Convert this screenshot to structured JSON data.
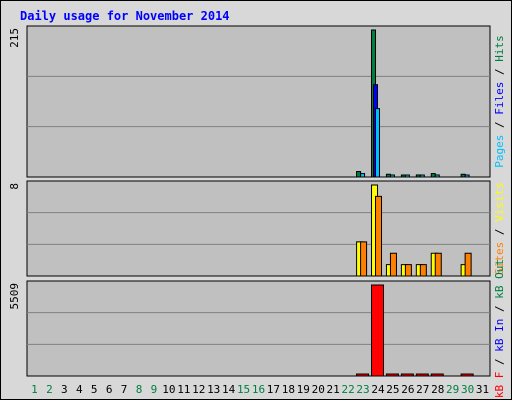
{
  "chart_data": {
    "type": "bar",
    "title": "Daily usage for November 2014",
    "categories": [
      "1",
      "2",
      "3",
      "4",
      "5",
      "6",
      "7",
      "8",
      "9",
      "10",
      "11",
      "12",
      "13",
      "14",
      "15",
      "16",
      "17",
      "18",
      "19",
      "20",
      "21",
      "22",
      "23",
      "24",
      "25",
      "26",
      "27",
      "28",
      "29",
      "30",
      "31"
    ],
    "weekend_days": [
      "1",
      "2",
      "8",
      "9",
      "15",
      "16",
      "22",
      "23",
      "29",
      "30"
    ],
    "panels": [
      {
        "id": "hits",
        "max_label": "215",
        "ylim": [
          0,
          215
        ],
        "series": [
          {
            "name": "Hits",
            "color": "#008040",
            "values": [
              0,
              0,
              0,
              0,
              0,
              0,
              0,
              0,
              0,
              0,
              0,
              0,
              0,
              0,
              0,
              0,
              0,
              0,
              0,
              0,
              0,
              0,
              8,
              215,
              4,
              2,
              3,
              5,
              0,
              4,
              0
            ]
          },
          {
            "name": "Files",
            "color": "#0000ff",
            "values": [
              0,
              0,
              0,
              0,
              0,
              0,
              0,
              0,
              0,
              0,
              0,
              0,
              0,
              0,
              0,
              0,
              0,
              0,
              0,
              0,
              0,
              0,
              0,
              135,
              0,
              0,
              0,
              0,
              0,
              0,
              0
            ]
          },
          {
            "name": "Pages",
            "color": "#00c0ff",
            "values": [
              0,
              0,
              0,
              0,
              0,
              0,
              0,
              0,
              0,
              0,
              0,
              0,
              0,
              0,
              0,
              0,
              0,
              0,
              0,
              0,
              0,
              0,
              5,
              100,
              2,
              1,
              2,
              3,
              0,
              2,
              0
            ]
          }
        ]
      },
      {
        "id": "visits",
        "max_label": "8",
        "ylim": [
          0,
          8
        ],
        "series": [
          {
            "name": "Visits",
            "color": "#ffff00",
            "values": [
              0,
              0,
              0,
              0,
              0,
              0,
              0,
              0,
              0,
              0,
              0,
              0,
              0,
              0,
              0,
              0,
              0,
              0,
              0,
              0,
              0,
              0,
              3,
              8,
              1,
              1,
              1,
              2,
              0,
              1,
              0
            ]
          },
          {
            "name": "Sites",
            "color": "#ff8000",
            "values": [
              0,
              0,
              0,
              0,
              0,
              0,
              0,
              0,
              0,
              0,
              0,
              0,
              0,
              0,
              0,
              0,
              0,
              0,
              0,
              0,
              0,
              0,
              3,
              7,
              2,
              1,
              1,
              2,
              0,
              2,
              0
            ]
          }
        ]
      },
      {
        "id": "kbytes",
        "max_label": "5509",
        "ylim": [
          0,
          5509
        ],
        "series": [
          {
            "name": "kB F",
            "color": "#ff0000",
            "values": [
              0,
              0,
              0,
              0,
              0,
              0,
              0,
              0,
              0,
              0,
              0,
              0,
              0,
              0,
              0,
              0,
              0,
              0,
              0,
              0,
              0,
              0,
              10,
              5509,
              8,
              6,
              8,
              8,
              0,
              8,
              0
            ]
          }
        ]
      }
    ],
    "right_legends": [
      [
        {
          "text": "Pages",
          "color": "#00c0ff"
        },
        {
          "text": " / ",
          "color": "#000000"
        },
        {
          "text": "Files",
          "color": "#0000ff"
        },
        {
          "text": " / ",
          "color": "#000000"
        },
        {
          "text": "Hits",
          "color": "#008040"
        }
      ],
      [
        {
          "text": "Sites",
          "color": "#ff8000"
        },
        {
          "text": " / ",
          "color": "#000000"
        },
        {
          "text": "Visits",
          "color": "#ffff00"
        }
      ],
      [
        {
          "text": "kB F",
          "color": "#ff0000"
        },
        {
          "text": " / ",
          "color": "#000000"
        },
        {
          "text": "kB In",
          "color": "#0000ff"
        },
        {
          "text": " / ",
          "color": "#000000"
        },
        {
          "text": "kB Out",
          "color": "#008040"
        }
      ]
    ],
    "colors": {
      "title": "#0000ff",
      "plot_bg": "#c0c0c0",
      "frame_bg": "#d8d8d8",
      "gridline": "#808080",
      "weekend_label": "#008040",
      "weekday_label": "#000000"
    }
  }
}
